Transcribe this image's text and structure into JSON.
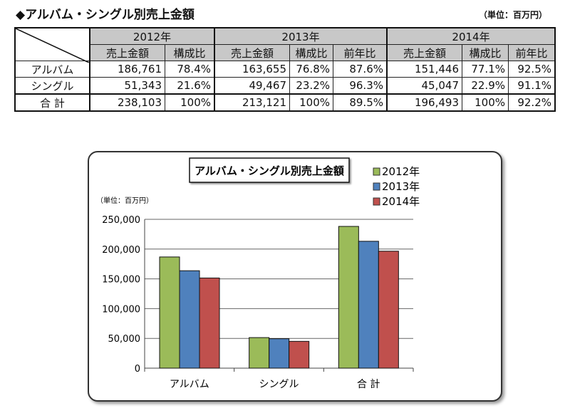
{
  "table": {
    "title": "◆アルバム・シングル別売上金額",
    "unit": "（単位：百万円）",
    "years": [
      "2012年",
      "2013年",
      "2014年"
    ],
    "subheaders": {
      "sales": "売上金額",
      "share": "構成比",
      "yoy": "前年比"
    },
    "rows": [
      {
        "label": "アルバム",
        "cells": [
          "186,761",
          "78.4%",
          "163,655",
          "76.8%",
          "87.6%",
          "151,446",
          "77.1%",
          "92.5%"
        ]
      },
      {
        "label": "シングル",
        "cells": [
          "51,343",
          "21.6%",
          "49,467",
          "23.2%",
          "96.3%",
          "45,047",
          "22.9%",
          "91.1%"
        ]
      },
      {
        "label": "合 計",
        "cells": [
          "238,103",
          "100%",
          "213,121",
          "100%",
          "89.5%",
          "196,493",
          "100%",
          "92.2%"
        ]
      }
    ]
  },
  "chart_data": {
    "type": "bar",
    "title": "アルバム・シングル別売上金額",
    "ylabel": "（単位：百万円）",
    "categories": [
      "アルバム",
      "シングル",
      "合 計"
    ],
    "series": [
      {
        "name": "2012年",
        "color": "#9bbb59",
        "values": [
          186761,
          51343,
          238103
        ]
      },
      {
        "name": "2013年",
        "color": "#4f81bd",
        "values": [
          163655,
          49467,
          213121
        ]
      },
      {
        "name": "2014年",
        "color": "#c0504d",
        "values": [
          151446,
          45047,
          196493
        ]
      }
    ],
    "ylim": [
      0,
      250000
    ],
    "yticks": [
      "0",
      "50,000",
      "100,000",
      "150,000",
      "200,000",
      "250,000"
    ],
    "grid": true,
    "legend": "top-right"
  }
}
